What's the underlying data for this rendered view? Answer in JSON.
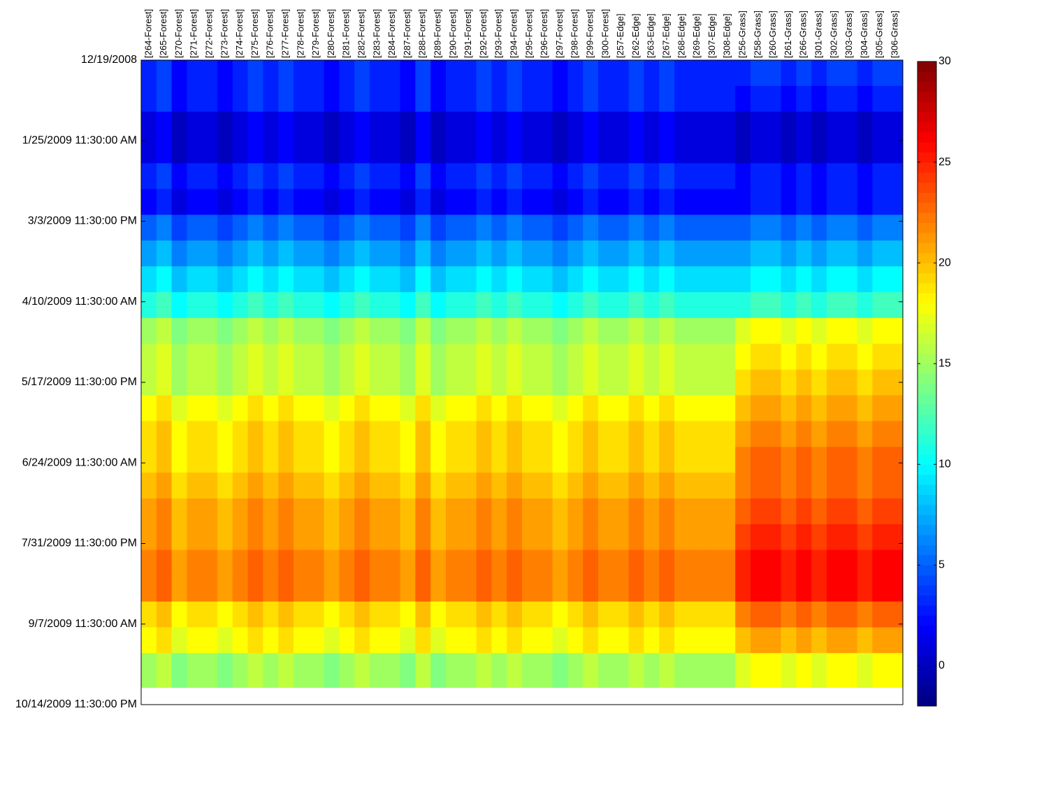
{
  "chart_data": {
    "type": "heatmap",
    "colormap": "jet",
    "columns": [
      "[264-Forest]",
      "[265-Forest]",
      "[270-Forest]",
      "[271-Forest]",
      "[272-Forest]",
      "[273-Forest]",
      "[274-Forest]",
      "[275-Forest]",
      "[276-Forest]",
      "[277-Forest]",
      "[278-Forest]",
      "[279-Forest]",
      "[280-Forest]",
      "[281-Forest]",
      "[282-Forest]",
      "[283-Forest]",
      "[284-Forest]",
      "[287-Forest]",
      "[288-Forest]",
      "[289-Forest]",
      "[290-Forest]",
      "[291-Forest]",
      "[292-Forest]",
      "[293-Forest]",
      "[294-Forest]",
      "[295-Forest]",
      "[296-Forest]",
      "[297-Forest]",
      "[298-Forest]",
      "[299-Forest]",
      "[300-Forest]",
      "[257-Edge]",
      "[262-Edge]",
      "[263-Edge]",
      "[267-Edge]",
      "[268-Edge]",
      "[269-Edge]",
      "[307-Edge]",
      "[308-Edge]",
      "[256-Grass]",
      "[258-Grass]",
      "[260-Grass]",
      "[261-Grass]",
      "[266-Grass]",
      "[301-Grass]",
      "[302-Grass]",
      "[303-Grass]",
      "[304-Grass]",
      "[305-Grass]",
      "[306-Grass]"
    ],
    "row_edges": [
      "12/19/2008",
      "12/31/2008",
      "1/12/2009",
      "1/24/2009",
      "2/5/2009",
      "2/17/2009",
      "3/1/2009",
      "3/13/2009",
      "3/25/2009",
      "4/6/2009",
      "4/18/2009",
      "4/30/2009",
      "5/12/2009",
      "5/24/2009",
      "6/5/2009",
      "6/17/2009",
      "6/29/2009",
      "7/11/2009",
      "7/23/2009",
      "8/4/2009",
      "8/16/2009",
      "8/28/2009",
      "9/9/2009",
      "9/21/2009",
      "10/7/2009"
    ],
    "values": [
      [
        3,
        4,
        2,
        3,
        3,
        2,
        3,
        4,
        3,
        4,
        3,
        3,
        2,
        3,
        4,
        3,
        3,
        2,
        4,
        2,
        3,
        3,
        4,
        3,
        4,
        3,
        3,
        2,
        3,
        4,
        3,
        3,
        4,
        3,
        4,
        3,
        3,
        3,
        3,
        3,
        4,
        4,
        3,
        4,
        3,
        4,
        4,
        3,
        4,
        4
      ],
      [
        3,
        4,
        2,
        3,
        3,
        2,
        3,
        4,
        3,
        4,
        3,
        3,
        2,
        3,
        4,
        3,
        3,
        2,
        4,
        2,
        3,
        3,
        4,
        3,
        4,
        3,
        3,
        2,
        3,
        4,
        3,
        3,
        4,
        3,
        4,
        3,
        3,
        3,
        3,
        2,
        3,
        3,
        2,
        3,
        2,
        3,
        3,
        2,
        3,
        3
      ],
      [
        1,
        2,
        0,
        1,
        1,
        0,
        1,
        2,
        1,
        2,
        1,
        1,
        0,
        1,
        2,
        1,
        1,
        0,
        2,
        0,
        1,
        1,
        2,
        1,
        2,
        1,
        1,
        0,
        1,
        2,
        1,
        1,
        2,
        1,
        2,
        1,
        1,
        1,
        1,
        0,
        1,
        1,
        0,
        1,
        0,
        1,
        1,
        0,
        1,
        1
      ],
      [
        1,
        2,
        0,
        1,
        1,
        0,
        1,
        2,
        1,
        2,
        1,
        1,
        0,
        1,
        2,
        1,
        1,
        0,
        2,
        0,
        1,
        1,
        2,
        1,
        2,
        1,
        1,
        0,
        1,
        2,
        1,
        1,
        2,
        1,
        2,
        1,
        1,
        1,
        1,
        0,
        1,
        1,
        0,
        1,
        0,
        1,
        1,
        0,
        1,
        1
      ],
      [
        3,
        4,
        2,
        3,
        3,
        2,
        3,
        4,
        3,
        4,
        3,
        3,
        2,
        3,
        4,
        3,
        3,
        2,
        4,
        2,
        3,
        3,
        4,
        3,
        4,
        3,
        3,
        2,
        3,
        4,
        3,
        3,
        4,
        3,
        4,
        3,
        3,
        3,
        3,
        2,
        3,
        3,
        2,
        3,
        2,
        3,
        3,
        2,
        3,
        3
      ],
      [
        2,
        3,
        1,
        2,
        2,
        1,
        2,
        3,
        2,
        3,
        2,
        2,
        1,
        2,
        3,
        2,
        2,
        1,
        3,
        1,
        2,
        2,
        3,
        2,
        3,
        2,
        2,
        1,
        2,
        3,
        2,
        2,
        3,
        2,
        3,
        2,
        2,
        2,
        2,
        2,
        3,
        3,
        2,
        3,
        2,
        3,
        3,
        2,
        3,
        3
      ],
      [
        5,
        6,
        4,
        5,
        5,
        4,
        5,
        6,
        5,
        6,
        5,
        5,
        4,
        5,
        6,
        5,
        5,
        4,
        6,
        4,
        5,
        5,
        6,
        5,
        6,
        5,
        5,
        4,
        5,
        6,
        5,
        5,
        6,
        5,
        6,
        5,
        5,
        5,
        5,
        5,
        6,
        6,
        5,
        6,
        5,
        6,
        6,
        5,
        6,
        6
      ],
      [
        7,
        8,
        6,
        7,
        7,
        6,
        7,
        8,
        7,
        8,
        7,
        7,
        6,
        7,
        8,
        7,
        7,
        6,
        8,
        6,
        7,
        7,
        8,
        7,
        8,
        7,
        7,
        6,
        7,
        8,
        7,
        7,
        8,
        7,
        8,
        7,
        7,
        7,
        7,
        7,
        8,
        8,
        7,
        8,
        7,
        8,
        8,
        7,
        8,
        8
      ],
      [
        9,
        10,
        8,
        9,
        9,
        8,
        9,
        10,
        9,
        10,
        9,
        9,
        8,
        9,
        10,
        9,
        9,
        8,
        10,
        8,
        9,
        9,
        10,
        9,
        10,
        9,
        9,
        8,
        9,
        10,
        9,
        9,
        10,
        9,
        10,
        9,
        9,
        9,
        9,
        9,
        10,
        10,
        9,
        10,
        9,
        10,
        10,
        9,
        10,
        10
      ],
      [
        11,
        12,
        10,
        11,
        11,
        10,
        11,
        12,
        11,
        12,
        11,
        11,
        10,
        11,
        12,
        11,
        11,
        10,
        12,
        10,
        11,
        11,
        12,
        11,
        12,
        11,
        11,
        10,
        11,
        12,
        11,
        11,
        12,
        11,
        12,
        11,
        11,
        11,
        11,
        11,
        12,
        12,
        11,
        12,
        11,
        12,
        12,
        11,
        12,
        12
      ],
      [
        15,
        16,
        14,
        15,
        15,
        14,
        15,
        16,
        15,
        16,
        15,
        15,
        14,
        15,
        16,
        15,
        15,
        14,
        16,
        14,
        15,
        15,
        16,
        15,
        16,
        15,
        15,
        14,
        15,
        16,
        15,
        15,
        16,
        15,
        16,
        15,
        15,
        15,
        15,
        17,
        18,
        18,
        17,
        18,
        17,
        18,
        18,
        17,
        18,
        18
      ],
      [
        16,
        17,
        15,
        16,
        16,
        15,
        16,
        17,
        16,
        17,
        16,
        16,
        15,
        16,
        17,
        16,
        16,
        15,
        17,
        15,
        16,
        16,
        17,
        16,
        17,
        16,
        16,
        15,
        16,
        17,
        16,
        16,
        17,
        16,
        17,
        16,
        16,
        16,
        16,
        18,
        19,
        19,
        18,
        19,
        18,
        19,
        19,
        18,
        19,
        19
      ],
      [
        16,
        17,
        15,
        16,
        16,
        15,
        16,
        17,
        16,
        17,
        16,
        16,
        15,
        16,
        17,
        16,
        16,
        15,
        17,
        15,
        16,
        16,
        17,
        16,
        17,
        16,
        16,
        15,
        16,
        17,
        16,
        16,
        17,
        16,
        17,
        16,
        16,
        16,
        16,
        19,
        20,
        20,
        19,
        20,
        19,
        20,
        20,
        19,
        20,
        20
      ],
      [
        18,
        19,
        17,
        18,
        18,
        17,
        18,
        19,
        18,
        19,
        18,
        18,
        17,
        18,
        19,
        18,
        18,
        17,
        19,
        17,
        18,
        18,
        19,
        18,
        19,
        18,
        18,
        17,
        18,
        19,
        18,
        18,
        19,
        18,
        19,
        18,
        18,
        18,
        18,
        20,
        21,
        21,
        20,
        21,
        20,
        21,
        21,
        20,
        21,
        21
      ],
      [
        19,
        20,
        18,
        19,
        19,
        18,
        19,
        20,
        19,
        20,
        19,
        19,
        18,
        19,
        20,
        19,
        19,
        18,
        20,
        18,
        19,
        19,
        20,
        19,
        20,
        19,
        19,
        18,
        19,
        20,
        19,
        19,
        20,
        19,
        20,
        19,
        19,
        19,
        19,
        21,
        22,
        22,
        21,
        22,
        21,
        22,
        22,
        21,
        22,
        22
      ],
      [
        19,
        20,
        18,
        19,
        19,
        18,
        19,
        20,
        19,
        20,
        19,
        19,
        18,
        19,
        20,
        19,
        19,
        18,
        20,
        18,
        19,
        19,
        20,
        19,
        20,
        19,
        19,
        18,
        19,
        20,
        19,
        19,
        20,
        19,
        20,
        19,
        19,
        19,
        19,
        22,
        23,
        23,
        22,
        23,
        22,
        23,
        23,
        22,
        23,
        23
      ],
      [
        20,
        21,
        19,
        20,
        20,
        19,
        20,
        21,
        20,
        21,
        20,
        20,
        19,
        20,
        21,
        20,
        20,
        19,
        21,
        19,
        20,
        20,
        21,
        20,
        21,
        20,
        20,
        19,
        20,
        21,
        20,
        20,
        21,
        20,
        21,
        20,
        20,
        20,
        20,
        22,
        23,
        23,
        22,
        23,
        22,
        23,
        23,
        22,
        23,
        23
      ],
      [
        21,
        22,
        20,
        21,
        21,
        20,
        21,
        22,
        21,
        22,
        21,
        21,
        20,
        21,
        22,
        21,
        21,
        20,
        22,
        20,
        21,
        21,
        22,
        21,
        22,
        21,
        21,
        20,
        21,
        22,
        21,
        21,
        22,
        21,
        22,
        21,
        21,
        21,
        21,
        23,
        24,
        24,
        23,
        24,
        23,
        24,
        24,
        23,
        24,
        24
      ],
      [
        21,
        22,
        20,
        21,
        21,
        20,
        21,
        22,
        21,
        22,
        21,
        21,
        20,
        21,
        22,
        21,
        21,
        20,
        22,
        20,
        21,
        21,
        22,
        21,
        22,
        21,
        21,
        20,
        21,
        22,
        21,
        21,
        22,
        21,
        22,
        21,
        21,
        21,
        21,
        24,
        25,
        25,
        24,
        25,
        24,
        25,
        25,
        24,
        25,
        25
      ],
      [
        22,
        23,
        21,
        22,
        22,
        21,
        22,
        23,
        22,
        23,
        22,
        22,
        21,
        22,
        23,
        22,
        22,
        21,
        23,
        21,
        22,
        22,
        23,
        22,
        23,
        22,
        22,
        21,
        22,
        23,
        22,
        22,
        23,
        22,
        23,
        22,
        22,
        22,
        22,
        25,
        26,
        26,
        25,
        26,
        25,
        26,
        26,
        25,
        26,
        26
      ],
      [
        22,
        23,
        21,
        22,
        22,
        21,
        22,
        23,
        22,
        23,
        22,
        22,
        21,
        22,
        23,
        22,
        22,
        21,
        23,
        21,
        22,
        22,
        23,
        22,
        23,
        22,
        22,
        21,
        22,
        23,
        22,
        22,
        23,
        22,
        23,
        22,
        22,
        22,
        22,
        25,
        26,
        26,
        25,
        26,
        25,
        26,
        26,
        25,
        26,
        26
      ],
      [
        19,
        20,
        18,
        19,
        19,
        18,
        19,
        20,
        19,
        20,
        19,
        19,
        18,
        19,
        20,
        19,
        19,
        18,
        20,
        18,
        19,
        19,
        20,
        19,
        20,
        19,
        19,
        18,
        19,
        20,
        19,
        19,
        20,
        19,
        20,
        19,
        19,
        19,
        19,
        22,
        23,
        23,
        22,
        23,
        22,
        23,
        23,
        22,
        23,
        23
      ],
      [
        18,
        19,
        17,
        18,
        18,
        17,
        18,
        19,
        18,
        19,
        18,
        18,
        17,
        18,
        19,
        18,
        18,
        17,
        19,
        17,
        18,
        18,
        19,
        18,
        19,
        18,
        18,
        17,
        18,
        19,
        18,
        18,
        19,
        18,
        19,
        18,
        18,
        18,
        18,
        20,
        21,
        21,
        20,
        21,
        20,
        21,
        21,
        20,
        21,
        21
      ],
      [
        15,
        16,
        14,
        15,
        15,
        14,
        15,
        16,
        15,
        16,
        15,
        15,
        14,
        15,
        16,
        15,
        15,
        14,
        16,
        14,
        15,
        15,
        16,
        15,
        16,
        15,
        15,
        14,
        15,
        16,
        15,
        15,
        16,
        15,
        16,
        15,
        15,
        15,
        15,
        17,
        18,
        18,
        17,
        18,
        17,
        18,
        18,
        17,
        18,
        18
      ]
    ],
    "ylim": [
      "12/19/2008",
      "10/14/2009 11:30:00 PM"
    ],
    "yticks": [
      "12/19/2008",
      "1/25/2009 11:30:00 AM",
      "3/3/2009 11:30:00 PM",
      "4/10/2009 11:30:00 AM",
      "5/17/2009 11:30:00 PM",
      "6/24/2009 11:30:00 AM",
      "7/31/2009 11:30:00 PM",
      "9/7/2009 11:30:00 AM",
      "10/14/2009 11:30:00 PM"
    ],
    "clim": [
      -2,
      30
    ],
    "cticks": [
      0,
      5,
      10,
      15,
      20,
      25,
      30
    ]
  }
}
